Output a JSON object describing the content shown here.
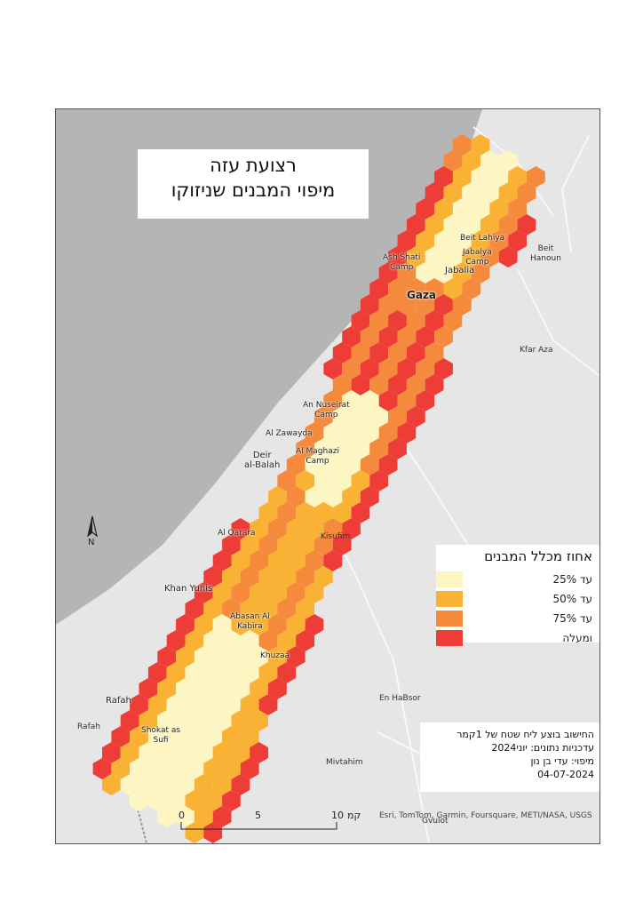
{
  "map": {
    "title_line1": "רצועת עזה",
    "title_line2": "מיפוי המבנים שניזוקו",
    "north_label": "N",
    "places": {
      "ash_shati": "Ash Shati\nCamp",
      "beit_lahiya": "Beit Lahiya",
      "jabalya_camp": "Jabalya\nCamp",
      "jabalia": "Jabalia",
      "beit_hanoun": "Beit\nHanoun",
      "gaza": "Gaza",
      "kfar_aza": "Kfar Aza",
      "an_nuseirat": "An Nuseirat\nCamp",
      "al_zawayda": "Al Zawayda",
      "deir_al_balah": "Deir\nal-Balah",
      "al_maghazi": "Al Maghazi\nCamp",
      "kisufim": "Kisufim",
      "al_qarara": "Al Qarara",
      "khan_yunis": "Khan Yunis",
      "abasan": "Abasan Al\nKabira",
      "khuzaa": "Khuzaa",
      "en_habsor": "En HaBsor",
      "rafah_1": "Rafah",
      "rafah_2": "Rafah",
      "shokat_as_sufi": "Shokat as\nSufi",
      "mivtahim": "Mivtahim",
      "gvulot": "Gvulot"
    },
    "legend": {
      "title": "אחוז מכלל המבנים",
      "items": [
        {
          "label": "עד 25%",
          "color": "#fdf6c3"
        },
        {
          "label": "עד 50%",
          "color": "#f9b233"
        },
        {
          "label": "עד 75%",
          "color": "#f58a3c"
        },
        {
          "label": "ומעלה",
          "color": "#ee3d36"
        }
      ]
    },
    "info": {
      "line1": "החישוב בוצע ליח שטח של 1קמר",
      "line2": "עדכניות נתונים: יוני2024",
      "line3": "מיפוי: עדי בן נון",
      "line4": "04-07-2024"
    },
    "scale": {
      "t0": "0",
      "t5": "5",
      "t10": "10",
      "unit": "קמ"
    },
    "attribution": "Esri, TomTom, Garmin, Foursquare, METI/NASA, USGS"
  }
}
